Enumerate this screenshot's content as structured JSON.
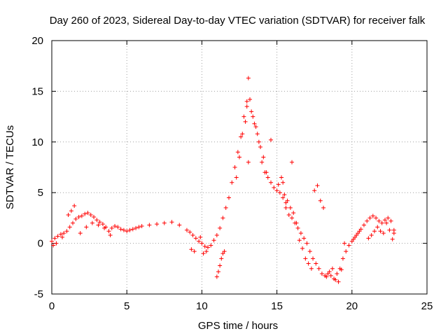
{
  "chart_data": {
    "type": "scatter",
    "title": "Day 260 of 2023, Sidereal Day-to-day VTEC variation (SDTVAR) for receiver falk",
    "xlabel": "GPS time / hours",
    "ylabel": "SDTVAR / TECUs",
    "xlim": [
      0,
      25
    ],
    "ylim": [
      -5,
      20
    ],
    "xticks": [
      0,
      5,
      10,
      15,
      20,
      25
    ],
    "yticks": [
      -5,
      0,
      5,
      10,
      15,
      20
    ],
    "grid": true,
    "marker": "+",
    "color": "#ff0000",
    "series": [
      {
        "name": "SDTVAR",
        "x": [
          0.0,
          0.2,
          0.4,
          0.6,
          0.8,
          1.0,
          1.2,
          1.4,
          1.6,
          1.8,
          2.0,
          2.2,
          2.4,
          2.6,
          2.8,
          3.0,
          3.2,
          3.4,
          3.6,
          3.8,
          4.0,
          4.2,
          4.4,
          4.6,
          4.8,
          5.0,
          5.2,
          5.4,
          5.6,
          5.8,
          6.0,
          6.5,
          7.0,
          7.5,
          8.0,
          8.5,
          9.0,
          9.2,
          9.4,
          9.6,
          9.8,
          10.0,
          10.2,
          10.4,
          10.6,
          10.8,
          11.0,
          11.2,
          11.4,
          11.6,
          11.8,
          12.0,
          12.2,
          12.4,
          12.6,
          12.8,
          13.0,
          13.1,
          13.2,
          13.4,
          13.6,
          13.8,
          14.0,
          14.2,
          14.4,
          14.6,
          14.8,
          15.0,
          15.2,
          15.4,
          15.6,
          15.8,
          16.0,
          16.2,
          16.4,
          16.6,
          16.8,
          17.0,
          17.2,
          17.4,
          17.6,
          17.8,
          18.0,
          18.2,
          18.4,
          18.6,
          18.8,
          19.0,
          19.2,
          19.4,
          19.6,
          19.8,
          20.0,
          20.2,
          20.4,
          20.6,
          20.8,
          21.0,
          21.2,
          21.4,
          21.6,
          21.8,
          22.0,
          22.2,
          22.4,
          22.6,
          22.8,
          0.1,
          0.3,
          0.7,
          1.1,
          1.3,
          1.5,
          1.9,
          2.3,
          2.7,
          3.1,
          3.5,
          3.9,
          9.3,
          9.5,
          9.9,
          10.1,
          10.3,
          11.0,
          11.1,
          11.2,
          11.3,
          11.4,
          11.5,
          12.3,
          12.5,
          12.7,
          12.9,
          13.0,
          13.1,
          13.3,
          13.5,
          13.7,
          13.9,
          14.1,
          14.3,
          15.1,
          15.3,
          15.5,
          15.7,
          15.9,
          16.1,
          16.3,
          16.5,
          16.7,
          16.9,
          17.1,
          17.3,
          17.5,
          17.7,
          17.9,
          18.1,
          18.3,
          18.5,
          18.7,
          18.9,
          19.1,
          19.3,
          19.5,
          20.1,
          20.3,
          20.5,
          21.1,
          21.3,
          21.5,
          21.7,
          21.9,
          22.1,
          22.3,
          22.5,
          22.7,
          22.8,
          14.6,
          15.4,
          15.6,
          16.0
        ],
        "y": [
          0.2,
          0.5,
          0.7,
          0.9,
          1.0,
          1.2,
          1.6,
          2.0,
          2.4,
          2.6,
          2.7,
          2.9,
          3.0,
          2.8,
          2.6,
          2.3,
          2.1,
          1.9,
          1.6,
          1.2,
          1.5,
          1.7,
          1.6,
          1.4,
          1.3,
          1.2,
          1.3,
          1.4,
          1.5,
          1.6,
          1.7,
          1.8,
          1.9,
          2.0,
          2.1,
          1.8,
          1.3,
          1.1,
          0.8,
          0.5,
          0.2,
          0.0,
          -0.3,
          -0.4,
          -0.2,
          0.3,
          0.8,
          1.5,
          2.5,
          3.5,
          4.5,
          6.0,
          7.5,
          9.0,
          10.5,
          12.5,
          14.0,
          16.3,
          14.2,
          12.5,
          11.5,
          10.0,
          8.0,
          7.0,
          6.5,
          6.0,
          5.5,
          5.2,
          5.0,
          4.5,
          3.5,
          2.8,
          2.5,
          2.0,
          1.5,
          1.0,
          0.5,
          0.0,
          -0.8,
          -1.5,
          -2.0,
          -2.5,
          -3.0,
          -3.2,
          -3.0,
          -3.2,
          -3.5,
          -3.0,
          -2.5,
          -1.5,
          -0.8,
          -0.2,
          0.2,
          0.6,
          1.0,
          1.4,
          1.8,
          2.2,
          2.5,
          2.7,
          2.5,
          2.2,
          2.0,
          2.3,
          2.5,
          2.2,
          1.3,
          -0.2,
          0.0,
          0.6,
          2.8,
          3.2,
          3.7,
          1.0,
          1.6,
          2.0,
          1.8,
          1.5,
          0.8,
          -0.6,
          -0.8,
          0.6,
          -1.0,
          -0.8,
          -3.3,
          -2.8,
          -2.2,
          -1.5,
          -1.0,
          -0.8,
          6.5,
          8.5,
          10.8,
          12.0,
          13.5,
          8.0,
          13.0,
          11.8,
          10.8,
          9.5,
          8.5,
          7.0,
          5.8,
          6.5,
          4.8,
          4.2,
          3.5,
          3.0,
          2.0,
          0.3,
          -0.5,
          -1.5,
          -2.0,
          -2.5,
          5.2,
          5.7,
          4.2,
          3.5,
          -3.3,
          -2.8,
          -2.5,
          -3.6,
          -3.8,
          -2.6,
          0.0,
          0.4,
          0.8,
          1.2,
          0.5,
          0.8,
          1.2,
          1.6,
          1.2,
          1.0,
          2.0,
          1.3,
          0.4,
          1.0,
          10.2,
          6.0,
          4.0,
          8.0
        ]
      }
    ]
  }
}
